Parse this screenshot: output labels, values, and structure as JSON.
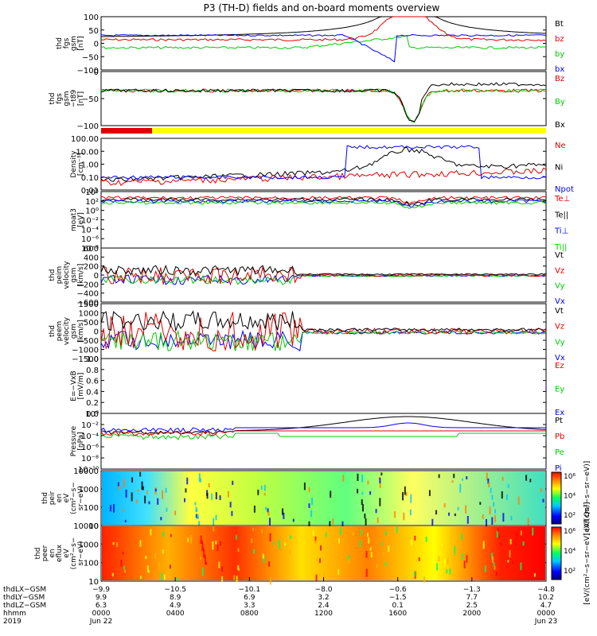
{
  "title": "P3 (TH-D) fields and on-board moments overview",
  "colors": {
    "black": "#000000",
    "red": "#e00000",
    "green": "#00cc00",
    "blue": "#0000ff",
    "yellow": "#ffff00"
  },
  "chart_data": [
    {
      "type": "line",
      "ylabel_lines": [
        "thd",
        "fgs",
        "gsm",
        "[nT]"
      ],
      "ylim": [
        -100,
        100
      ],
      "yticks": [
        "100",
        "50",
        "0",
        "−50",
        "−100"
      ],
      "series": [
        {
          "name": "Bt",
          "color": "black"
        },
        {
          "name": "bz",
          "color": "red"
        },
        {
          "name": "by",
          "color": "green"
        },
        {
          "name": "bx",
          "color": "blue"
        }
      ]
    },
    {
      "type": "line",
      "ylabel_lines": [
        "thd",
        "fgs",
        "gsm",
        "−t89",
        "[nT]"
      ],
      "ylim": [
        -120,
        20
      ],
      "yticks": [
        "0",
        "−50",
        "−100"
      ],
      "series": [
        {
          "name": "Bz",
          "color": "red"
        },
        {
          "name": "By",
          "color": "green"
        },
        {
          "name": "Bx",
          "color": "black"
        }
      ]
    },
    {
      "type": "line",
      "ylabel_lines": [
        "Density",
        "[cm⁻³]"
      ],
      "scale": "log",
      "yticks": [
        "100.00",
        "10.00",
        "1.00",
        "0.10",
        "0.01"
      ],
      "series": [
        {
          "name": "Ne",
          "color": "red"
        },
        {
          "name": "Ni",
          "color": "black"
        },
        {
          "name": "Npot",
          "color": "blue"
        }
      ]
    },
    {
      "type": "line",
      "ylabel_lines": [
        "moat3",
        "[eV]"
      ],
      "scale": "log",
      "yticks": [
        "10⁴",
        "10²",
        "10⁰",
        "10⁻²",
        "10⁻⁴",
        "10⁻⁶",
        "10⁻⁸"
      ],
      "series": [
        {
          "name": "Te⊥",
          "color": "red"
        },
        {
          "name": "Te||",
          "color": "black"
        },
        {
          "name": "Ti⊥",
          "color": "blue"
        },
        {
          "name": "Ti||",
          "color": "green"
        }
      ]
    },
    {
      "type": "line",
      "ylabel_lines": [
        "thd",
        "peim",
        "velocity",
        "gsm",
        "[km/s]"
      ],
      "ylim": [
        -600,
        600
      ],
      "yticks": [
        "600",
        "400",
        "200",
        "0",
        "−200",
        "−400",
        "−600"
      ],
      "series": [
        {
          "name": "Vt",
          "color": "black"
        },
        {
          "name": "Vz",
          "color": "red"
        },
        {
          "name": "Vy",
          "color": "green"
        },
        {
          "name": "Vx",
          "color": "blue"
        }
      ]
    },
    {
      "type": "line",
      "ylabel_lines": [
        "thd",
        "peem",
        "velocity",
        "gsm",
        "[km/s]"
      ],
      "ylim": [
        -1500,
        1500
      ],
      "yticks": [
        "1500",
        "1000",
        "500",
        "0",
        "−500",
        "−1000",
        "−1500"
      ],
      "series": [
        {
          "name": "Vt",
          "color": "black"
        },
        {
          "name": "Vz",
          "color": "red"
        },
        {
          "name": "Vy",
          "color": "green"
        },
        {
          "name": "Vx",
          "color": "blue"
        }
      ]
    },
    {
      "type": "line",
      "ylabel_lines": [
        "E=−VxB",
        "[mV/m]"
      ],
      "ylim": [
        0,
        1
      ],
      "yticks": [
        "1.0",
        "0.8",
        "0.6",
        "0.4",
        "0.2",
        "0.0"
      ],
      "series": [
        {
          "name": "Ez",
          "color": "red"
        },
        {
          "name": "Ey",
          "color": "green"
        },
        {
          "name": "Ex",
          "color": "blue"
        }
      ]
    },
    {
      "type": "line",
      "ylabel_lines": [
        "Pressure",
        "[nPa]"
      ],
      "scale": "log",
      "yticks": [
        "10⁰",
        "10⁻²",
        "10⁻⁴",
        "10⁻⁶",
        "10⁻⁸",
        "10⁻¹⁰"
      ],
      "series": [
        {
          "name": "Pt",
          "color": "black"
        },
        {
          "name": "Pb",
          "color": "red"
        },
        {
          "name": "Pe",
          "color": "green"
        },
        {
          "name": "Pi",
          "color": "blue"
        }
      ]
    },
    {
      "type": "heatmap",
      "ylabel_lines": [
        "thd",
        "peir",
        "en",
        "eV",
        "(cm²−s−",
        "sr−eV)"
      ],
      "yticks": [
        "10000",
        "1000",
        "100",
        "10"
      ],
      "colorbar": {
        "label": "[eV/(cm²−s−sr−eV)]",
        "ticks": [
          "10⁶",
          "10⁴",
          "10²"
        ]
      }
    },
    {
      "type": "heatmap",
      "ylabel_lines": [
        "thd",
        "peer",
        "en",
        "eflux",
        "eV",
        "(cm²−s−",
        "sr−eV)"
      ],
      "yticks": [
        "10000",
        "1000",
        "100",
        "10"
      ],
      "colorbar": {
        "label": "[eV/(cm²−s−sr−eV) (All Qs)]",
        "ticks": [
          "10⁶",
          "10⁴",
          "10²"
        ]
      }
    }
  ],
  "xaxis": {
    "row_labels": [
      "thdLX−GSM",
      "thdLY−GSM",
      "thdLZ−GSM",
      "hhmm",
      "2019"
    ],
    "ticks": [
      [
        "−9.9",
        "9.9",
        "6.3",
        "0000",
        "Jun 22"
      ],
      [
        "−10.5",
        "8.9",
        "4.9",
        "0400",
        ""
      ],
      [
        "−10.1",
        "6.9",
        "3.3",
        "0800",
        ""
      ],
      [
        "−8.0",
        "3.2",
        "2.4",
        "1200",
        ""
      ],
      [
        "−0.6",
        "−1.5",
        "0.1",
        "1600",
        ""
      ],
      [
        "−1.3",
        "7.7",
        "2.5",
        "2000",
        ""
      ],
      [
        "−4.8",
        "10.2",
        "4.7",
        "0000",
        "Jun 23"
      ]
    ]
  }
}
